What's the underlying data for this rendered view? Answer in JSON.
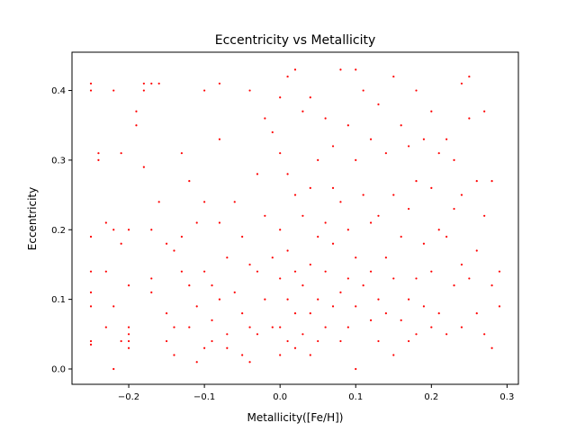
{
  "chart_data": {
    "type": "scatter",
    "title": "Eccentricity vs Metallicity",
    "xlabel": "Metallicity([Fe/H])",
    "ylabel": "Eccentricity",
    "xlim": [
      -0.275,
      0.315
    ],
    "ylim": [
      -0.022,
      0.455
    ],
    "xticks": [
      -0.2,
      -0.1,
      0.0,
      0.1,
      0.2,
      0.3
    ],
    "xtick_labels": [
      "−0.2",
      "−0.1",
      "0.0",
      "0.1",
      "0.2",
      "0.3"
    ],
    "yticks": [
      0.0,
      0.1,
      0.2,
      0.3,
      0.4
    ],
    "ytick_labels": [
      "0.0",
      "0.1",
      "0.2",
      "0.3",
      "0.4"
    ],
    "grid": false,
    "point_color": "#ff0000",
    "series": [
      {
        "x": [
          -0.25,
          -0.25,
          -0.25,
          -0.25,
          -0.25,
          -0.25,
          -0.25,
          -0.25,
          -0.24,
          -0.24,
          -0.23,
          -0.23,
          -0.23,
          -0.22,
          -0.22,
          -0.22,
          -0.22,
          -0.21,
          -0.21,
          -0.21,
          -0.2,
          -0.2,
          -0.2,
          -0.2,
          -0.2,
          -0.2,
          -0.19,
          -0.19,
          -0.18,
          -0.18,
          -0.18,
          -0.17,
          -0.17,
          -0.17,
          -0.17,
          -0.16,
          -0.16,
          -0.15,
          -0.15,
          -0.15,
          -0.14,
          -0.14,
          -0.14,
          -0.13,
          -0.13,
          -0.13,
          -0.12,
          -0.12,
          -0.12,
          -0.11,
          -0.11,
          -0.11,
          -0.1,
          -0.1,
          -0.1,
          -0.1,
          -0.09,
          -0.09,
          -0.09,
          -0.08,
          -0.08,
          -0.08,
          -0.08,
          -0.07,
          -0.07,
          -0.07,
          -0.06,
          -0.06,
          -0.05,
          -0.05,
          -0.05,
          -0.04,
          -0.04,
          -0.04,
          -0.04,
          -0.03,
          -0.03,
          -0.03,
          -0.02,
          -0.02,
          -0.02,
          -0.01,
          -0.01,
          -0.01,
          0.0,
          0.0,
          0.0,
          0.0,
          0.0,
          0.0,
          0.01,
          0.01,
          0.01,
          0.01,
          0.01,
          0.02,
          0.02,
          0.02,
          0.02,
          0.02,
          0.03,
          0.03,
          0.03,
          0.03,
          0.04,
          0.04,
          0.04,
          0.04,
          0.04,
          0.05,
          0.05,
          0.05,
          0.05,
          0.06,
          0.06,
          0.06,
          0.06,
          0.07,
          0.07,
          0.07,
          0.07,
          0.08,
          0.08,
          0.08,
          0.08,
          0.09,
          0.09,
          0.09,
          0.09,
          0.1,
          0.1,
          0.1,
          0.1,
          0.1,
          0.11,
          0.11,
          0.11,
          0.12,
          0.12,
          0.12,
          0.12,
          0.13,
          0.13,
          0.13,
          0.13,
          0.14,
          0.14,
          0.14,
          0.15,
          0.15,
          0.15,
          0.15,
          0.16,
          0.16,
          0.16,
          0.17,
          0.17,
          0.17,
          0.17,
          0.18,
          0.18,
          0.18,
          0.18,
          0.19,
          0.19,
          0.19,
          0.2,
          0.2,
          0.2,
          0.2,
          0.21,
          0.21,
          0.21,
          0.22,
          0.22,
          0.22,
          0.23,
          0.23,
          0.23,
          0.24,
          0.24,
          0.24,
          0.24,
          0.25,
          0.25,
          0.25,
          0.26,
          0.26,
          0.26,
          0.27,
          0.27,
          0.27,
          0.28,
          0.28,
          0.28,
          0.29,
          0.29
        ],
        "y": [
          0.41,
          0.4,
          0.19,
          0.14,
          0.11,
          0.09,
          0.04,
          0.035,
          0.31,
          0.3,
          0.21,
          0.14,
          0.06,
          0.4,
          0.2,
          0.09,
          0.0,
          0.31,
          0.18,
          0.04,
          0.2,
          0.12,
          0.06,
          0.05,
          0.04,
          0.03,
          0.37,
          0.35,
          0.41,
          0.4,
          0.29,
          0.41,
          0.2,
          0.13,
          0.11,
          0.41,
          0.24,
          0.18,
          0.08,
          0.04,
          0.17,
          0.06,
          0.02,
          0.31,
          0.19,
          0.14,
          0.27,
          0.12,
          0.06,
          0.21,
          0.09,
          0.01,
          0.4,
          0.24,
          0.14,
          0.03,
          0.12,
          0.07,
          0.04,
          0.41,
          0.33,
          0.21,
          0.1,
          0.16,
          0.05,
          0.03,
          0.24,
          0.11,
          0.19,
          0.08,
          0.02,
          0.4,
          0.15,
          0.06,
          0.01,
          0.28,
          0.14,
          0.05,
          0.36,
          0.22,
          0.1,
          0.34,
          0.16,
          0.06,
          0.39,
          0.31,
          0.2,
          0.13,
          0.06,
          0.02,
          0.42,
          0.28,
          0.17,
          0.1,
          0.04,
          0.43,
          0.25,
          0.14,
          0.08,
          0.03,
          0.37,
          0.22,
          0.12,
          0.05,
          0.39,
          0.26,
          0.15,
          0.08,
          0.02,
          0.3,
          0.19,
          0.1,
          0.04,
          0.36,
          0.21,
          0.14,
          0.06,
          0.32,
          0.26,
          0.18,
          0.09,
          0.43,
          0.24,
          0.11,
          0.04,
          0.35,
          0.2,
          0.13,
          0.06,
          0.43,
          0.3,
          0.16,
          0.09,
          0.0,
          0.4,
          0.25,
          0.12,
          0.33,
          0.21,
          0.14,
          0.07,
          0.38,
          0.22,
          0.1,
          0.04,
          0.31,
          0.16,
          0.08,
          0.42,
          0.25,
          0.13,
          0.02,
          0.35,
          0.19,
          0.07,
          0.32,
          0.23,
          0.1,
          0.04,
          0.4,
          0.27,
          0.13,
          0.05,
          0.33,
          0.18,
          0.09,
          0.37,
          0.26,
          0.14,
          0.06,
          0.31,
          0.2,
          0.08,
          0.33,
          0.19,
          0.05,
          0.3,
          0.23,
          0.12,
          0.41,
          0.25,
          0.15,
          0.06,
          0.42,
          0.36,
          0.13,
          0.27,
          0.17,
          0.08,
          0.37,
          0.22,
          0.05,
          0.27,
          0.12,
          0.03,
          0.14,
          0.09
        ]
      }
    ]
  }
}
